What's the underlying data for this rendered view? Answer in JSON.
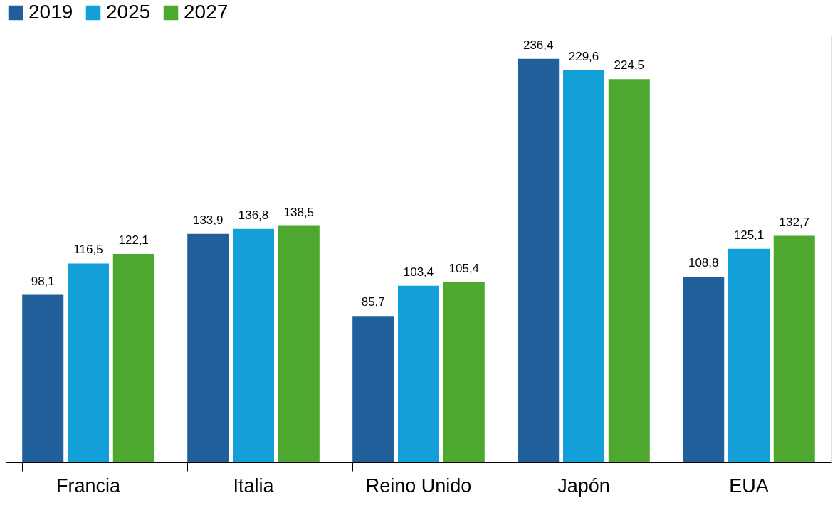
{
  "chart_data": {
    "type": "bar",
    "categories": [
      "Francia",
      "Italia",
      "Reino Unido",
      "Japón",
      "EUA"
    ],
    "series": [
      {
        "name": "2019",
        "color": "#215f9a",
        "values": [
          98.1,
          133.9,
          85.7,
          236.4,
          108.8
        ],
        "value_labels": [
          "98,1",
          "133,9",
          "85,7",
          "236,4",
          "108,8"
        ]
      },
      {
        "name": "2025",
        "color": "#139fd8",
        "values": [
          116.5,
          136.8,
          103.4,
          229.6,
          125.1
        ],
        "value_labels": [
          "116,5",
          "136,8",
          "103,4",
          "229,6",
          "125,1"
        ]
      },
      {
        "name": "2027",
        "color": "#4ea72e",
        "values": [
          122.1,
          138.5,
          105.4,
          224.5,
          132.7
        ],
        "value_labels": [
          "122,1",
          "138,5",
          "105,4",
          "224,5",
          "132,7"
        ]
      }
    ],
    "ylim": [
      0,
      250
    ],
    "tick_labels": "x",
    "grid": false,
    "legend": "top"
  }
}
